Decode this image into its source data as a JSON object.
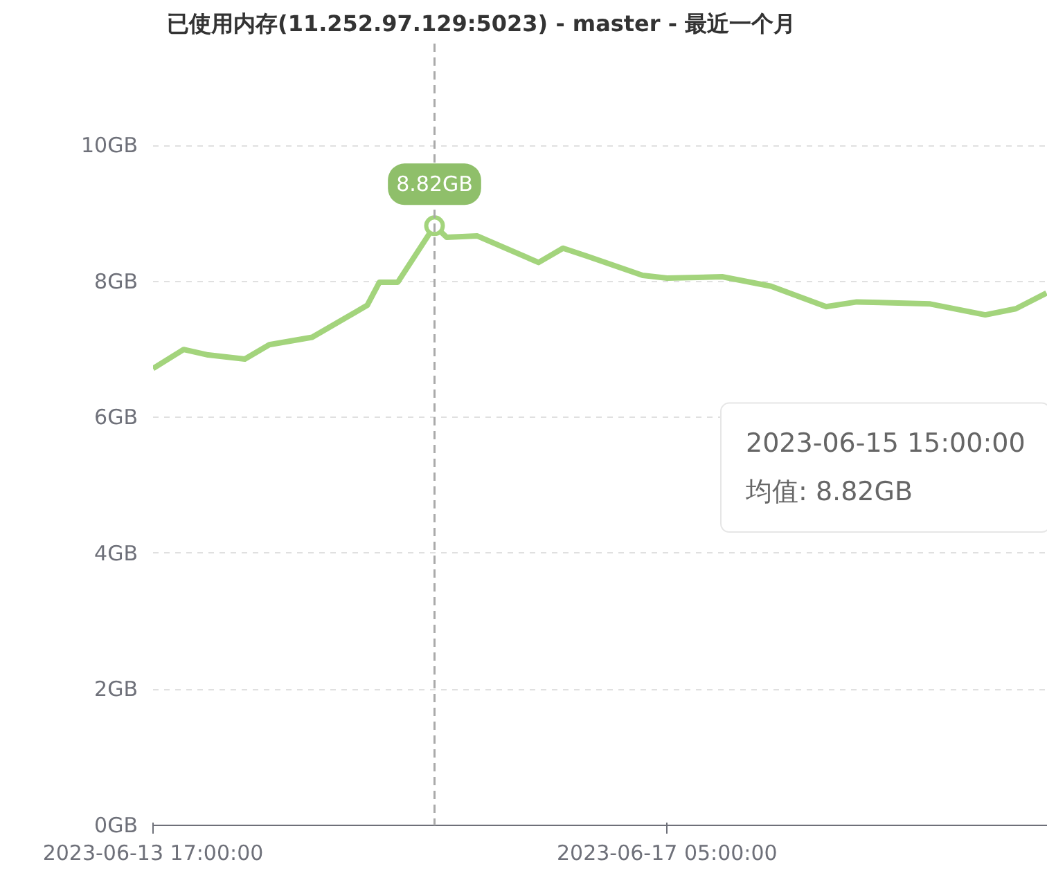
{
  "chart_data": {
    "type": "line",
    "title": "已使用内存(11.252.97.129:5023) - master - 最近一个月",
    "x": [
      "2023-06-13T17:00",
      "2023-06-13T22:00",
      "2023-06-14T02:00",
      "2023-06-14T08:00",
      "2023-06-14T12:00",
      "2023-06-14T19:00",
      "2023-06-15T04:00",
      "2023-06-15T06:00",
      "2023-06-15T09:00",
      "2023-06-15T15:00",
      "2023-06-15T17:00",
      "2023-06-15T22:00",
      "2023-06-16T08:00",
      "2023-06-16T12:00",
      "2023-06-16T16:00",
      "2023-06-17T01:00",
      "2023-06-17T05:00",
      "2023-06-17T14:00",
      "2023-06-17T22:00",
      "2023-06-18T07:00",
      "2023-06-18T12:00",
      "2023-06-19T00:00",
      "2023-06-19T09:00",
      "2023-06-19T14:00",
      "2023-06-19T19:00"
    ],
    "series": [
      {
        "name": "均值:",
        "color": "#a3d47c",
        "values": [
          6.72,
          7.0,
          6.92,
          6.86,
          7.07,
          7.18,
          7.65,
          7.99,
          7.99,
          8.82,
          8.65,
          8.67,
          8.28,
          8.49,
          8.37,
          8.09,
          8.05,
          8.07,
          7.93,
          7.63,
          7.7,
          7.67,
          7.51,
          7.6,
          7.83
        ]
      }
    ],
    "xlim": [
      "2023-06-13T17:00",
      "2023-06-19T19:12"
    ],
    "xticks": [
      {
        "value": "2023-06-13T17:00",
        "label": "2023-06-13 17:00:00"
      },
      {
        "value": "2023-06-17T05:00",
        "label": "2023-06-17 05:00:00"
      }
    ],
    "ylim": [
      0,
      11.5
    ],
    "yticks": [
      {
        "value": 0,
        "label": "0GB"
      },
      {
        "value": 2,
        "label": "2GB"
      },
      {
        "value": 4,
        "label": "4GB"
      },
      {
        "value": 6,
        "label": "6GB"
      },
      {
        "value": 8,
        "label": "8GB"
      },
      {
        "value": 10,
        "label": "10GB"
      }
    ],
    "grid": "y",
    "line_style": "solid",
    "ref_lines": [
      {
        "axis": "x",
        "value": "2023-06-15T15:00",
        "label": null,
        "color": "#aaaaaa",
        "line_style": "dashed"
      }
    ],
    "annotations": [
      {
        "text": "8.82GB",
        "x": "2023-06-15T15:00",
        "y": 8.82
      },
      "2023-06-15 15:00:00"
    ]
  }
}
